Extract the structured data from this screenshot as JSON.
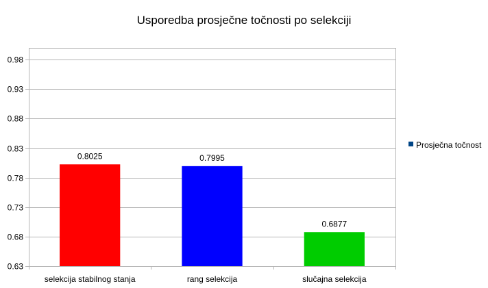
{
  "chart_data": {
    "type": "bar",
    "title": "Usporedba prosječne točnosti po selekciji",
    "xlabel": "",
    "ylabel": "",
    "categories": [
      "selekcija stabilnog stanja",
      "rang selekcija",
      "slučajna selekcija"
    ],
    "series": [
      {
        "name": "Prosječna točnost",
        "values": [
          0.8025,
          0.7995,
          0.6877
        ],
        "value_labels": [
          "0.8025",
          "0.7995",
          "0.6877"
        ],
        "bar_colors": [
          "#ff0000",
          "#0000ff",
          "#00cc00"
        ]
      }
    ],
    "ylim": [
      0.63,
      1.0
    ],
    "yticks": [
      0.63,
      0.68,
      0.73,
      0.78,
      0.83,
      0.88,
      0.93,
      0.98
    ],
    "ytick_labels": [
      "0.63",
      "0.68",
      "0.73",
      "0.78",
      "0.83",
      "0.88",
      "0.93",
      "0.98"
    ],
    "grid": true,
    "legend": {
      "position": "right",
      "marker_color": "#004586"
    },
    "colors": {
      "grid": "#b3b3b3",
      "axis": "#b3b3b3"
    }
  }
}
